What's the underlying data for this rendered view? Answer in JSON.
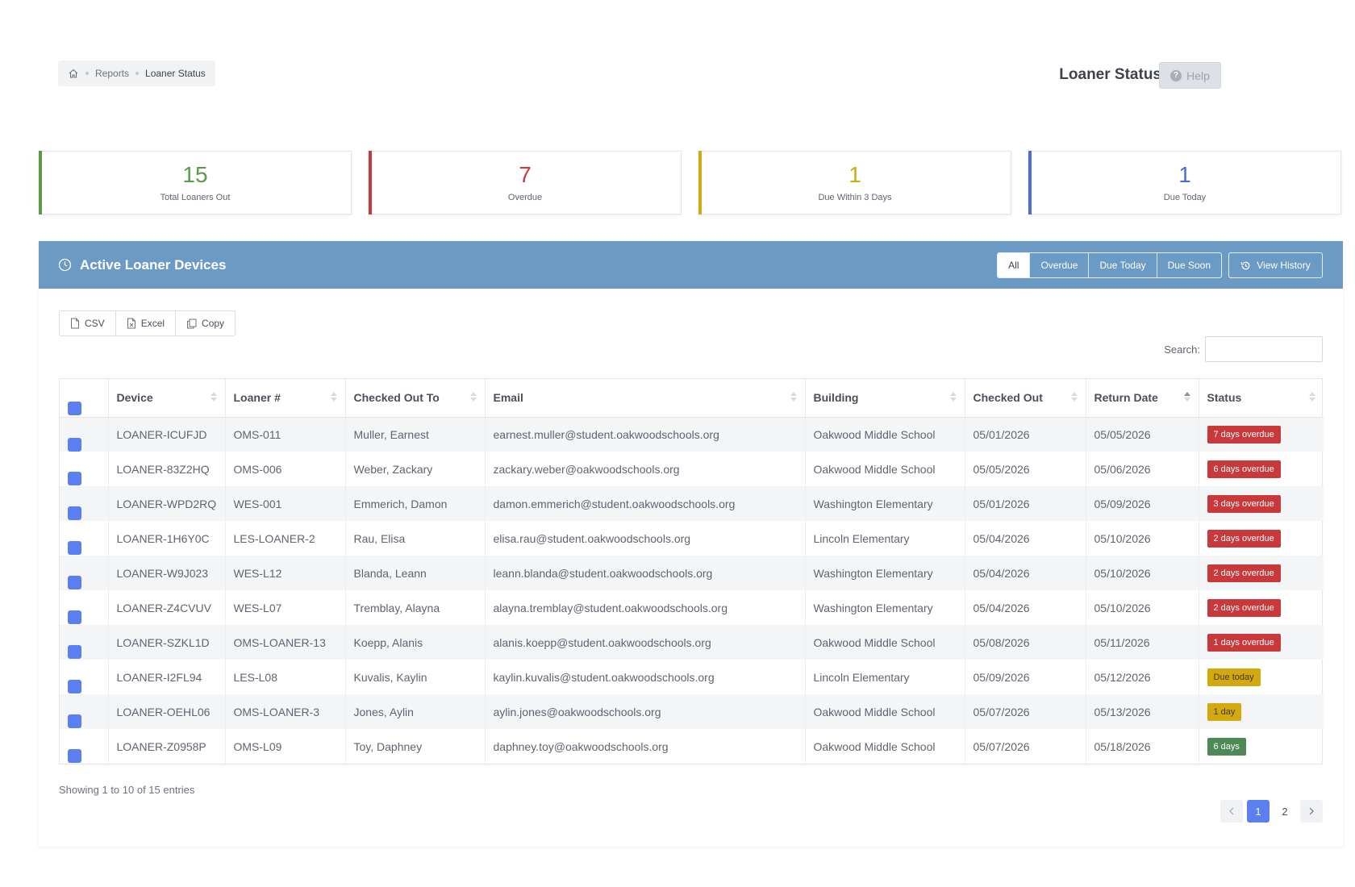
{
  "breadcrumb": {
    "items": [
      "Reports",
      "Loaner Status"
    ]
  },
  "header": {
    "title": "Loaner Status",
    "help_label": "Help"
  },
  "stats": [
    {
      "value": "15",
      "label": "Total Loaners Out",
      "color": "#5a9a4a"
    },
    {
      "value": "7",
      "label": "Overdue",
      "color": "#c9383a"
    },
    {
      "value": "1",
      "label": "Due Within 3 Days",
      "color": "#d4a90f"
    },
    {
      "value": "1",
      "label": "Due Today",
      "color": "#4a6fd9"
    }
  ],
  "card": {
    "title": "Active Loaner Devices",
    "header_color": "#6b9ac4",
    "filters": [
      "All",
      "Overdue",
      "Due Today",
      "Due Soon"
    ],
    "active_filter": "All",
    "history_label": "View History"
  },
  "export": {
    "csv": "CSV",
    "excel": "Excel",
    "copy": "Copy"
  },
  "search": {
    "label": "Search:",
    "value": ""
  },
  "table": {
    "columns": [
      "Device",
      "Loaner #",
      "Checked Out To",
      "Email",
      "Building",
      "Checked Out",
      "Return Date",
      "Status"
    ],
    "sorted_column": "Return Date",
    "rows": [
      [
        "LOANER-ICUFJD",
        "OMS-011",
        "Muller, Earnest",
        "earnest.muller@student.oakwoodschools.org",
        "Oakwood Middle School",
        "05/01/2026",
        "05/05/2026",
        "7 days overdue",
        "overdue"
      ],
      [
        "LOANER-83Z2HQ",
        "OMS-006",
        "Weber, Zackary",
        "zackary.weber@oakwoodschools.org",
        "Oakwood Middle School",
        "05/05/2026",
        "05/06/2026",
        "6 days overdue",
        "overdue"
      ],
      [
        "LOANER-WPD2RQ",
        "WES-001",
        "Emmerich, Damon",
        "damon.emmerich@student.oakwoodschools.org",
        "Washington Elementary",
        "05/01/2026",
        "05/09/2026",
        "3 days overdue",
        "overdue"
      ],
      [
        "LOANER-1H6Y0C",
        "LES-LOANER-2",
        "Rau, Elisa",
        "elisa.rau@student.oakwoodschools.org",
        "Lincoln Elementary",
        "05/04/2026",
        "05/10/2026",
        "2 days overdue",
        "overdue"
      ],
      [
        "LOANER-W9J023",
        "WES-L12",
        "Blanda, Leann",
        "leann.blanda@student.oakwoodschools.org",
        "Washington Elementary",
        "05/04/2026",
        "05/10/2026",
        "2 days overdue",
        "overdue"
      ],
      [
        "LOANER-Z4CVUV",
        "WES-L07",
        "Tremblay, Alayna",
        "alayna.tremblay@student.oakwoodschools.org",
        "Washington Elementary",
        "05/04/2026",
        "05/10/2026",
        "2 days overdue",
        "overdue"
      ],
      [
        "LOANER-SZKL1D",
        "OMS-LOANER-13",
        "Koepp, Alanis",
        "alanis.koepp@student.oakwoodschools.org",
        "Oakwood Middle School",
        "05/08/2026",
        "05/11/2026",
        "1 days overdue",
        "overdue"
      ],
      [
        "LOANER-I2FL94",
        "LES-L08",
        "Kuvalis, Kaylin",
        "kaylin.kuvalis@student.oakwoodschools.org",
        "Lincoln Elementary",
        "05/09/2026",
        "05/12/2026",
        "Due today",
        "today"
      ],
      [
        "LOANER-OEHL06",
        "OMS-LOANER-3",
        "Jones, Aylin",
        "aylin.jones@oakwoodschools.org",
        "Oakwood Middle School",
        "05/07/2026",
        "05/13/2026",
        "1 day",
        "soon"
      ],
      [
        "LOANER-Z0958P",
        "OMS-L09",
        "Toy, Daphney",
        "daphney.toy@oakwoodschools.org",
        "Oakwood Middle School",
        "05/07/2026",
        "05/18/2026",
        "6 days",
        "ok"
      ]
    ]
  },
  "status_colors": {
    "overdue": "#c9383a",
    "today": "#d4a90f",
    "soon": "#d4a90f",
    "ok": "#4e8a55"
  },
  "status_text_colors": {
    "overdue": "#ffffff",
    "today": "#3d3a1a",
    "soon": "#3d3a1a",
    "ok": "#ffffff"
  },
  "footer": {
    "info": "Showing 1 to 10 of 15 entries",
    "pages": [
      "1",
      "2"
    ],
    "current_page": "1"
  }
}
